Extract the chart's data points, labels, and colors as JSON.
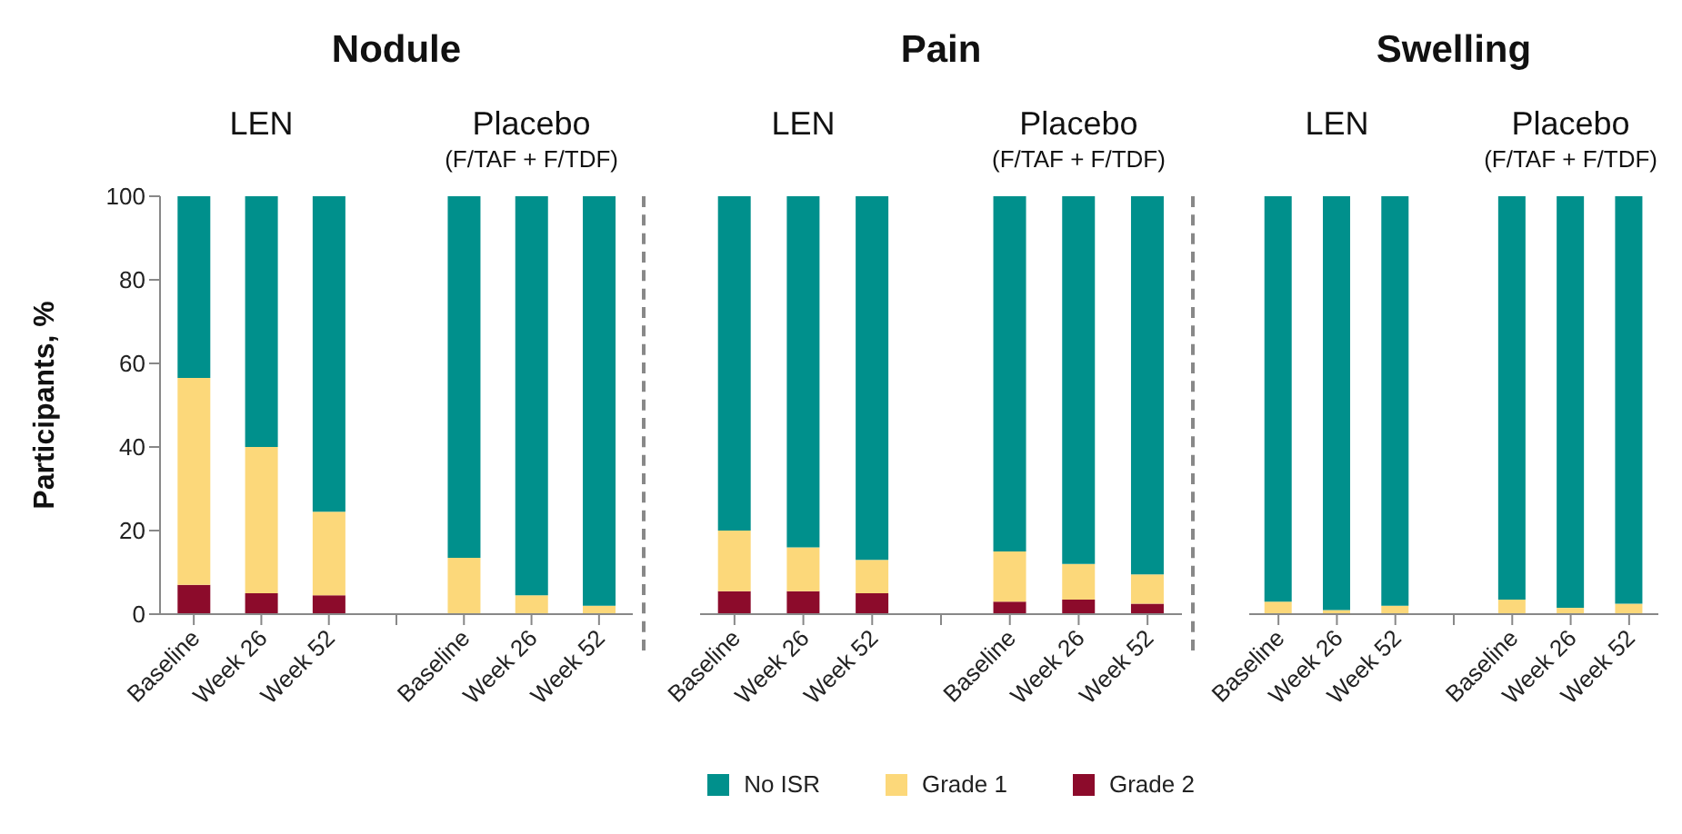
{
  "chart_data": [
    {
      "type": "bar",
      "title": "Nodule",
      "ylabel": "Participants, %",
      "annotations": [
        "LEN",
        "Placebo",
        "(F/TAF + F/TDF)"
      ],
      "categories": [
        "Baseline",
        "Week 26",
        "Week 52",
        null,
        "Baseline",
        "Week 26",
        "Week 52"
      ],
      "stacked": true,
      "ylim": [
        0,
        100
      ],
      "yticks": [
        0,
        20,
        40,
        60,
        80,
        100
      ],
      "legend": "bottom",
      "series": [
        {
          "name": "Grade 2",
          "color": "#8c0b2b",
          "values": [
            7,
            5,
            4.5,
            null,
            0,
            0,
            0
          ]
        },
        {
          "name": "Grade 1",
          "color": "#fcd87a",
          "values": [
            49.5,
            35,
            20,
            null,
            13.5,
            4.5,
            2
          ]
        },
        {
          "name": "No ISR",
          "color": "#00908c",
          "values": [
            43.5,
            60,
            75.5,
            null,
            86.5,
            95.5,
            98
          ]
        }
      ]
    },
    {
      "type": "bar",
      "title": "Pain",
      "annotations": [
        "LEN",
        "Placebo",
        "(F/TAF + F/TDF)"
      ],
      "categories": [
        "Baseline",
        "Week 26",
        "Week 52",
        null,
        "Baseline",
        "Week 26",
        "Week 52"
      ],
      "stacked": true,
      "ylim": [
        0,
        100
      ],
      "tick_labels": "x",
      "series": [
        {
          "color": "#8c0b2b",
          "values": [
            5.5,
            5.5,
            5,
            null,
            3,
            3.5,
            2.5
          ]
        },
        {
          "color": "#fcd87a",
          "values": [
            14.5,
            10.5,
            8,
            null,
            12,
            8.5,
            7
          ]
        },
        {
          "color": "#00908c",
          "values": [
            80,
            84,
            87,
            null,
            85,
            88,
            90.5
          ]
        }
      ]
    },
    {
      "type": "bar",
      "title": "Swelling",
      "annotations": [
        "LEN",
        "Placebo",
        "(F/TAF + F/TDF)"
      ],
      "categories": [
        "Baseline",
        "Week 26",
        "Week 52",
        null,
        "Baseline",
        "Week 26",
        "Week 52"
      ],
      "stacked": true,
      "ylim": [
        0,
        100
      ],
      "tick_labels": "x",
      "series": [
        {
          "color": "#8c0b2b",
          "values": [
            0,
            0,
            0,
            null,
            0,
            0,
            0
          ]
        },
        {
          "color": "#fcd87a",
          "values": [
            3,
            1,
            2,
            null,
            3.5,
            1.5,
            2.5
          ]
        },
        {
          "color": "#00908c",
          "values": [
            97,
            99,
            98,
            null,
            96.5,
            98.5,
            97.5
          ]
        }
      ]
    }
  ]
}
